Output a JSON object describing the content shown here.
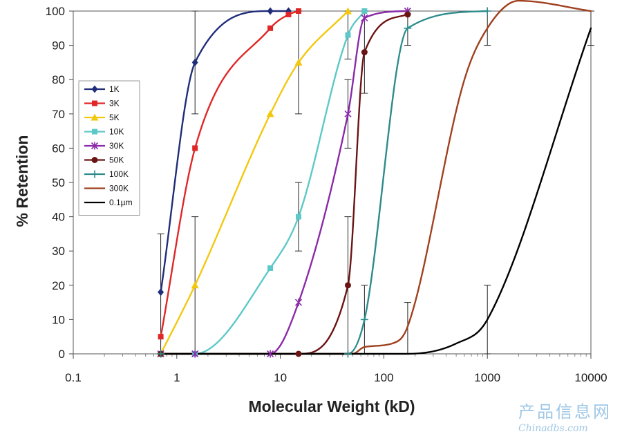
{
  "chart_data": {
    "type": "line",
    "xlabel": "Molecular Weight (kD)",
    "ylabel": "% Retention",
    "xscale": "log",
    "xlim": [
      0.1,
      10000
    ],
    "ylim": [
      0,
      100
    ],
    "x_ticks": [
      "0.1",
      "1",
      "10",
      "100",
      "1000",
      "10000"
    ],
    "y_ticks": [
      "0",
      "10",
      "20",
      "30",
      "40",
      "50",
      "60",
      "70",
      "80",
      "90",
      "100"
    ],
    "grid": false,
    "legend_position": "top-left",
    "series": [
      {
        "name": "1K",
        "color": "#1f2d7a",
        "marker": "diamond",
        "x": [
          0.7,
          1.5,
          8,
          12
        ],
        "y": [
          18,
          85,
          100,
          100
        ]
      },
      {
        "name": "3K",
        "color": "#e02727",
        "marker": "square",
        "x": [
          0.7,
          1.5,
          8,
          12,
          15
        ],
        "y": [
          5,
          60,
          95,
          99,
          100
        ]
      },
      {
        "name": "5K",
        "color": "#f2c80f",
        "marker": "triangle",
        "x": [
          0.7,
          1.5,
          8,
          15,
          45
        ],
        "y": [
          0,
          20,
          70,
          85,
          100
        ]
      },
      {
        "name": "10K",
        "color": "#5cc8c8",
        "marker": "square",
        "x": [
          0.7,
          1.5,
          8,
          15,
          45,
          65
        ],
        "y": [
          0,
          0,
          25,
          40,
          93,
          100
        ]
      },
      {
        "name": "30K",
        "color": "#8a2aa8",
        "marker": "asterisk",
        "x": [
          0.7,
          1.5,
          8,
          15,
          45,
          65,
          170
        ],
        "y": [
          0,
          0,
          0,
          15,
          70,
          98,
          100
        ]
      },
      {
        "name": "50K",
        "color": "#6b1414",
        "marker": "circle",
        "x": [
          0.7,
          15,
          45,
          65,
          170
        ],
        "y": [
          0,
          0,
          20,
          88,
          99
        ]
      },
      {
        "name": "100K",
        "color": "#2e8b8b",
        "marker": "plus",
        "x": [
          0.7,
          45,
          65,
          170,
          1000
        ],
        "y": [
          0,
          0,
          10,
          95,
          100
        ]
      },
      {
        "name": "300K",
        "color": "#a0401e",
        "marker": "none",
        "x": [
          0.7,
          50,
          65,
          120,
          170,
          600,
          1000,
          2000,
          10000
        ],
        "y": [
          0,
          0,
          2,
          3,
          8,
          80,
          95,
          103,
          100
        ]
      },
      {
        "name": "0.1µm",
        "color": "#000000",
        "marker": "none",
        "x": [
          0.7,
          100,
          170,
          500,
          1000,
          10000
        ],
        "y": [
          0,
          0,
          0,
          3,
          10,
          95
        ]
      }
    ],
    "error_bars": [
      {
        "x": 0.7,
        "y": 18,
        "low": 0,
        "high": 35
      },
      {
        "x": 1.5,
        "y": 85,
        "low": 70,
        "high": 100
      },
      {
        "x": 1.5,
        "y": 20,
        "low": 0,
        "high": 40
      },
      {
        "x": 15,
        "y": 85,
        "low": 70,
        "high": 100
      },
      {
        "x": 15,
        "y": 40,
        "low": 30,
        "high": 50
      },
      {
        "x": 45,
        "y": 93,
        "low": 86,
        "high": 100
      },
      {
        "x": 45,
        "y": 70,
        "low": 60,
        "high": 80
      },
      {
        "x": 45,
        "y": 20,
        "low": 0,
        "high": 40
      },
      {
        "x": 65,
        "y": 88,
        "low": 76,
        "high": 100
      },
      {
        "x": 65,
        "y": 10,
        "low": 0,
        "high": 20
      },
      {
        "x": 170,
        "y": 95,
        "low": 90,
        "high": 100
      },
      {
        "x": 170,
        "y": 8,
        "low": 0,
        "high": 15
      },
      {
        "x": 1000,
        "y": 95,
        "low": 90,
        "high": 100
      },
      {
        "x": 1000,
        "y": 10,
        "low": 0,
        "high": 20
      },
      {
        "x": 10000,
        "y": 95,
        "low": 90,
        "high": 100
      }
    ]
  },
  "watermark": {
    "chinese": "产品信息网",
    "site": "Chinadbs.com"
  }
}
